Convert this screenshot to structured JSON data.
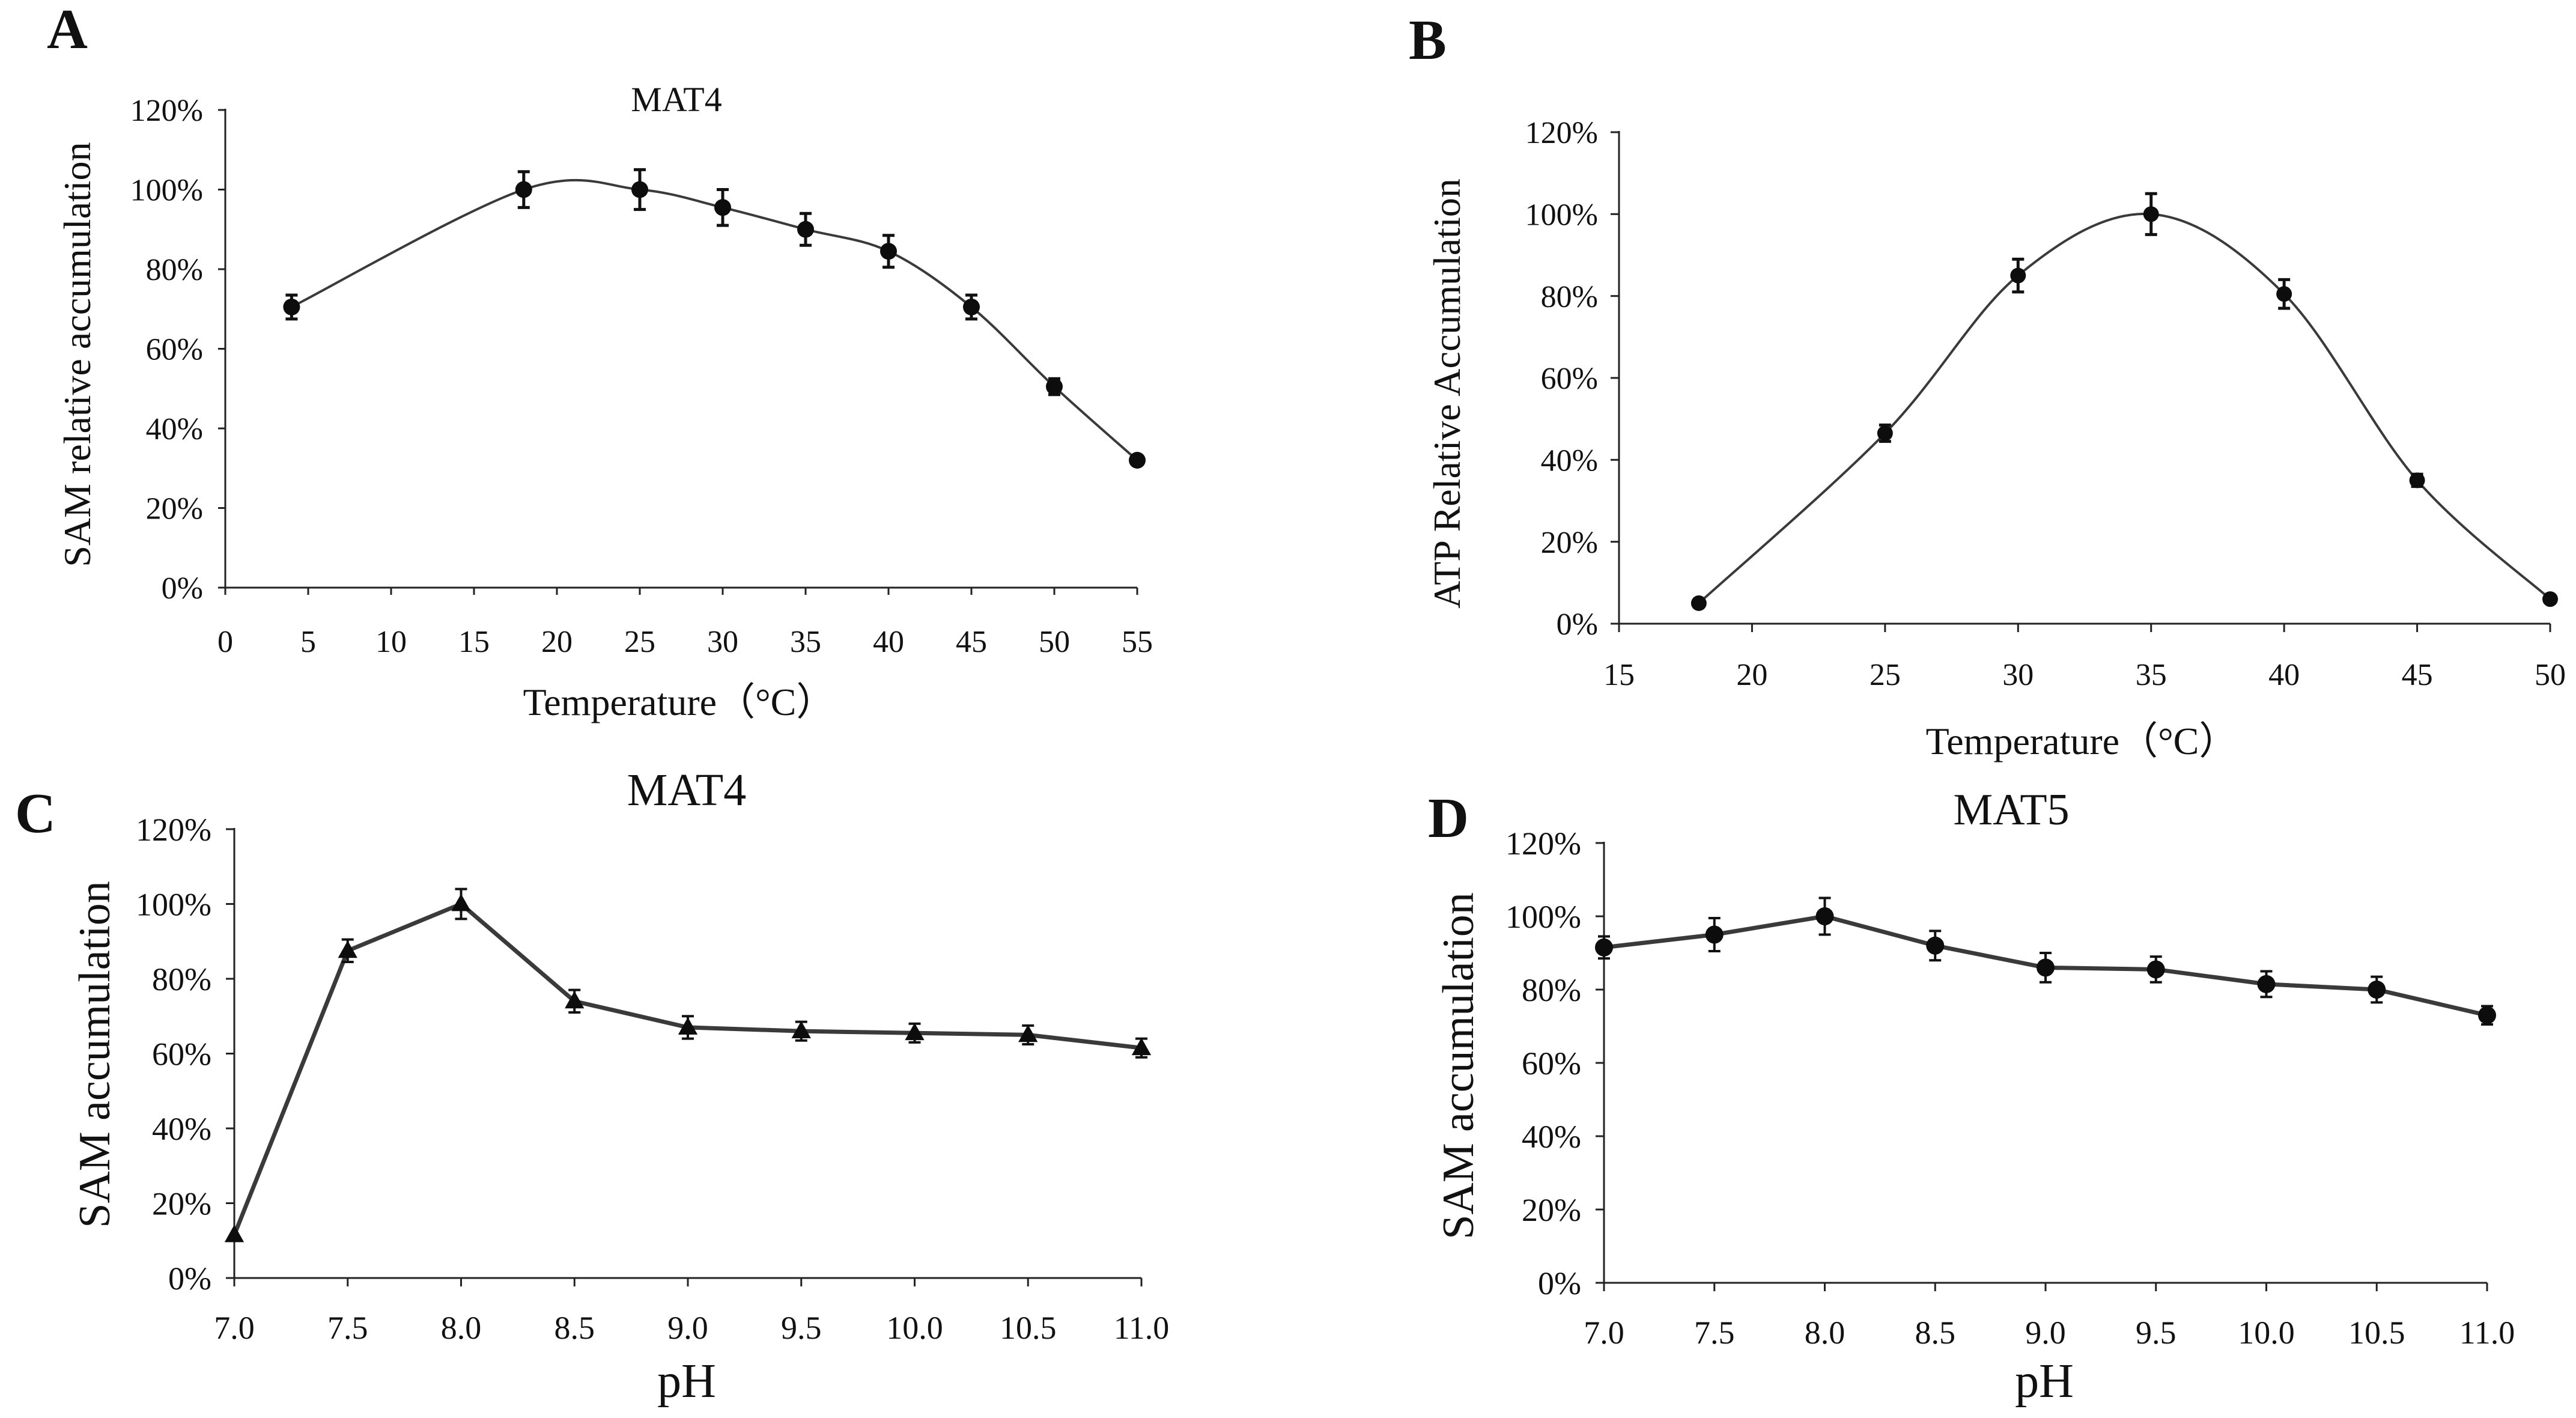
{
  "chart_data": [
    {
      "panel": "A",
      "type": "line",
      "title": "MAT4",
      "xlabel": "Temperature（°C）",
      "ylabel": "SAM relative accumulation",
      "xlim": [
        0,
        55
      ],
      "xticks": [
        0,
        5,
        10,
        15,
        20,
        25,
        30,
        35,
        40,
        45,
        50,
        55
      ],
      "xtick_labels": [
        "0",
        "5",
        "10",
        "15",
        "20",
        "25",
        "30",
        "35",
        "40",
        "45",
        "50",
        "55"
      ],
      "ylim": [
        0,
        120
      ],
      "yticks": [
        0,
        20,
        40,
        60,
        80,
        100,
        120
      ],
      "ytick_labels": [
        "0%",
        "20%",
        "40%",
        "60%",
        "80%",
        "100%",
        "120%"
      ],
      "marker": "circle",
      "line_style": "smooth",
      "series": [
        {
          "name": "MAT4",
          "x": [
            4,
            18,
            25,
            30,
            35,
            40,
            45,
            50,
            55
          ],
          "values": [
            70.5,
            100,
            100,
            95.5,
            90,
            84.5,
            70.5,
            50.5,
            32
          ],
          "error": [
            3,
            4.5,
            5,
            4.5,
            4,
            4,
            3,
            2,
            1
          ]
        }
      ]
    },
    {
      "panel": "B",
      "type": "line",
      "title": "",
      "xlabel": "Temperature（°C）",
      "ylabel": "ATP Relative Accumulation",
      "xlim": [
        15,
        50
      ],
      "xticks": [
        15,
        20,
        25,
        30,
        35,
        40,
        45,
        50
      ],
      "xtick_labels": [
        "15",
        "20",
        "25",
        "30",
        "35",
        "40",
        "45",
        "50"
      ],
      "ylim": [
        0,
        120
      ],
      "yticks": [
        0,
        20,
        40,
        60,
        80,
        100,
        120
      ],
      "ytick_labels": [
        "0%",
        "20%",
        "40%",
        "60%",
        "80%",
        "100%",
        "120%"
      ],
      "marker": "circle",
      "line_style": "smooth",
      "series": [
        {
          "name": "ATP",
          "x": [
            18,
            25,
            30,
            35,
            40,
            45,
            50
          ],
          "values": [
            5,
            46.5,
            85,
            100,
            80.5,
            35,
            6
          ],
          "error": [
            0.5,
            2,
            4,
            5,
            3.5,
            1.5,
            0.5
          ]
        }
      ]
    },
    {
      "panel": "C",
      "type": "line",
      "title": "MAT4",
      "xlabel": "pH",
      "ylabel": "SAM accumulation",
      "xlim": [
        7.0,
        11.0
      ],
      "xticks": [
        7.0,
        7.5,
        8.0,
        8.5,
        9.0,
        9.5,
        10.0,
        10.5,
        11.0
      ],
      "xtick_labels": [
        "7.0",
        "7.5",
        "8.0",
        "8.5",
        "9.0",
        "9.5",
        "10.0",
        "10.5",
        "11.0"
      ],
      "ylim": [
        0,
        120
      ],
      "yticks": [
        0,
        20,
        40,
        60,
        80,
        100,
        120
      ],
      "ytick_labels": [
        "0%",
        "20%",
        "40%",
        "60%",
        "80%",
        "100%",
        "120%"
      ],
      "marker": "triangle",
      "line_style": "straight",
      "series": [
        {
          "name": "MAT4",
          "x": [
            7.0,
            7.5,
            8.0,
            8.5,
            9.0,
            9.5,
            10.0,
            10.5,
            11.0
          ],
          "values": [
            11.5,
            87.5,
            100,
            74,
            67,
            66,
            65.5,
            65,
            61.5
          ],
          "error": [
            0.5,
            3,
            4,
            3,
            3,
            2.5,
            2.5,
            2.5,
            2.5
          ]
        }
      ]
    },
    {
      "panel": "D",
      "type": "line",
      "title": "MAT5",
      "xlabel": "pH",
      "ylabel": "SAM accumulation",
      "xlim": [
        7.0,
        11.0
      ],
      "xticks": [
        7.0,
        7.5,
        8.0,
        8.5,
        9.0,
        9.5,
        10.0,
        10.5,
        11.0
      ],
      "xtick_labels": [
        "7.0",
        "7.5",
        "8.0",
        "8.5",
        "9.0",
        "9.5",
        "10.0",
        "10.5",
        "11.0"
      ],
      "ylim": [
        0,
        120
      ],
      "yticks": [
        0,
        20,
        40,
        60,
        80,
        100,
        120
      ],
      "ytick_labels": [
        "0%",
        "20%",
        "40%",
        "60%",
        "80%",
        "100%",
        "120%"
      ],
      "marker": "circle",
      "line_style": "straight",
      "series": [
        {
          "name": "MAT5",
          "x": [
            7.0,
            7.5,
            8.0,
            8.5,
            9.0,
            9.5,
            10.0,
            10.5,
            11.0
          ],
          "values": [
            91.5,
            95,
            100,
            92,
            86,
            85.5,
            81.5,
            80,
            73
          ],
          "error": [
            3,
            4.5,
            5,
            4,
            4,
            3.5,
            3.5,
            3.5,
            2.5
          ]
        }
      ]
    }
  ],
  "colors": {
    "line": "#3a3a3a",
    "marker": "#0d0d0d",
    "axis": "#222222"
  }
}
